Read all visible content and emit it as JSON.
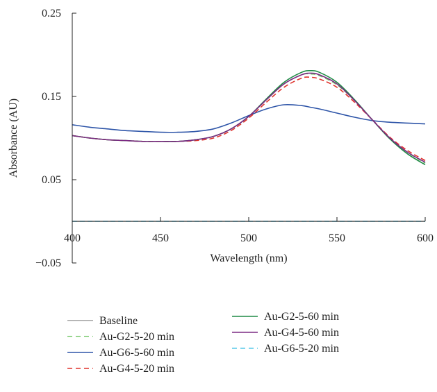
{
  "chart_data": {
    "type": "line",
    "title": "",
    "xlabel": "Wavelength (nm)",
    "ylabel": "Absorbance (AU)",
    "xlim": [
      400,
      600
    ],
    "ylim": [
      -0.05,
      0.25
    ],
    "x_ticks": [
      400,
      450,
      500,
      550,
      600
    ],
    "x_tick_labels": [
      "400",
      "450",
      "500",
      "550",
      "600"
    ],
    "y_ticks": [
      -0.05,
      0.05,
      0.15,
      0.25
    ],
    "y_tick_labels": [
      "−0.05",
      "0.05",
      "0.15",
      "0.25"
    ],
    "x_axis_at_y": 0,
    "grid": false,
    "legend_position": "bottom",
    "x": [
      400,
      410,
      420,
      430,
      440,
      450,
      460,
      470,
      480,
      490,
      500,
      510,
      520,
      530,
      535,
      540,
      550,
      560,
      570,
      580,
      590,
      600
    ],
    "series": [
      {
        "name": "Baseline",
        "color": "#9e9e9e",
        "dash": "solid",
        "values": [
          0,
          0,
          0,
          0,
          0,
          0,
          0,
          0,
          0,
          0,
          0,
          0,
          0,
          0,
          0,
          0,
          0,
          0,
          0,
          0,
          0,
          0
        ]
      },
      {
        "name": "Au-G2-5-20 min",
        "color": "#77c86a",
        "dash": "dashed",
        "values": [
          0.103,
          0.1,
          0.098,
          0.097,
          0.096,
          0.096,
          0.096,
          0.098,
          0.102,
          0.111,
          0.126,
          0.146,
          0.165,
          0.176,
          0.177,
          0.175,
          0.164,
          0.145,
          0.122,
          0.1,
          0.083,
          0.07
        ]
      },
      {
        "name": "Au-G6-5-60 min",
        "color": "#2e55a8",
        "dash": "solid",
        "values": [
          0.116,
          0.113,
          0.111,
          0.109,
          0.108,
          0.107,
          0.107,
          0.108,
          0.111,
          0.118,
          0.127,
          0.135,
          0.14,
          0.139,
          0.137,
          0.135,
          0.13,
          0.125,
          0.121,
          0.119,
          0.118,
          0.117
        ]
      },
      {
        "name": "Au-G4-5-20 min",
        "color": "#e0322c",
        "dash": "dashed",
        "values": [
          0.103,
          0.1,
          0.098,
          0.097,
          0.096,
          0.096,
          0.096,
          0.097,
          0.1,
          0.109,
          0.124,
          0.143,
          0.161,
          0.172,
          0.173,
          0.171,
          0.161,
          0.143,
          0.122,
          0.101,
          0.085,
          0.073
        ]
      },
      {
        "name": "Au-G2-5-60 min",
        "color": "#1e8a45",
        "dash": "solid",
        "values": [
          0.103,
          0.1,
          0.098,
          0.097,
          0.096,
          0.096,
          0.096,
          0.098,
          0.102,
          0.111,
          0.126,
          0.147,
          0.167,
          0.179,
          0.181,
          0.179,
          0.167,
          0.146,
          0.122,
          0.099,
          0.081,
          0.068
        ]
      },
      {
        "name": "Au-G4-5-60 min",
        "color": "#7b2a83",
        "dash": "solid",
        "values": [
          0.103,
          0.1,
          0.098,
          0.097,
          0.096,
          0.096,
          0.096,
          0.098,
          0.102,
          0.111,
          0.126,
          0.146,
          0.165,
          0.176,
          0.178,
          0.176,
          0.165,
          0.145,
          0.122,
          0.1,
          0.083,
          0.071
        ]
      },
      {
        "name": "Au-G6-5-20 min",
        "color": "#56c8e8",
        "dash": "dashed",
        "values": [
          0,
          0,
          0,
          0,
          0,
          0,
          0,
          0,
          0,
          0,
          0,
          0,
          0,
          0,
          0,
          0,
          0,
          0,
          0,
          0,
          0,
          0
        ]
      }
    ]
  }
}
